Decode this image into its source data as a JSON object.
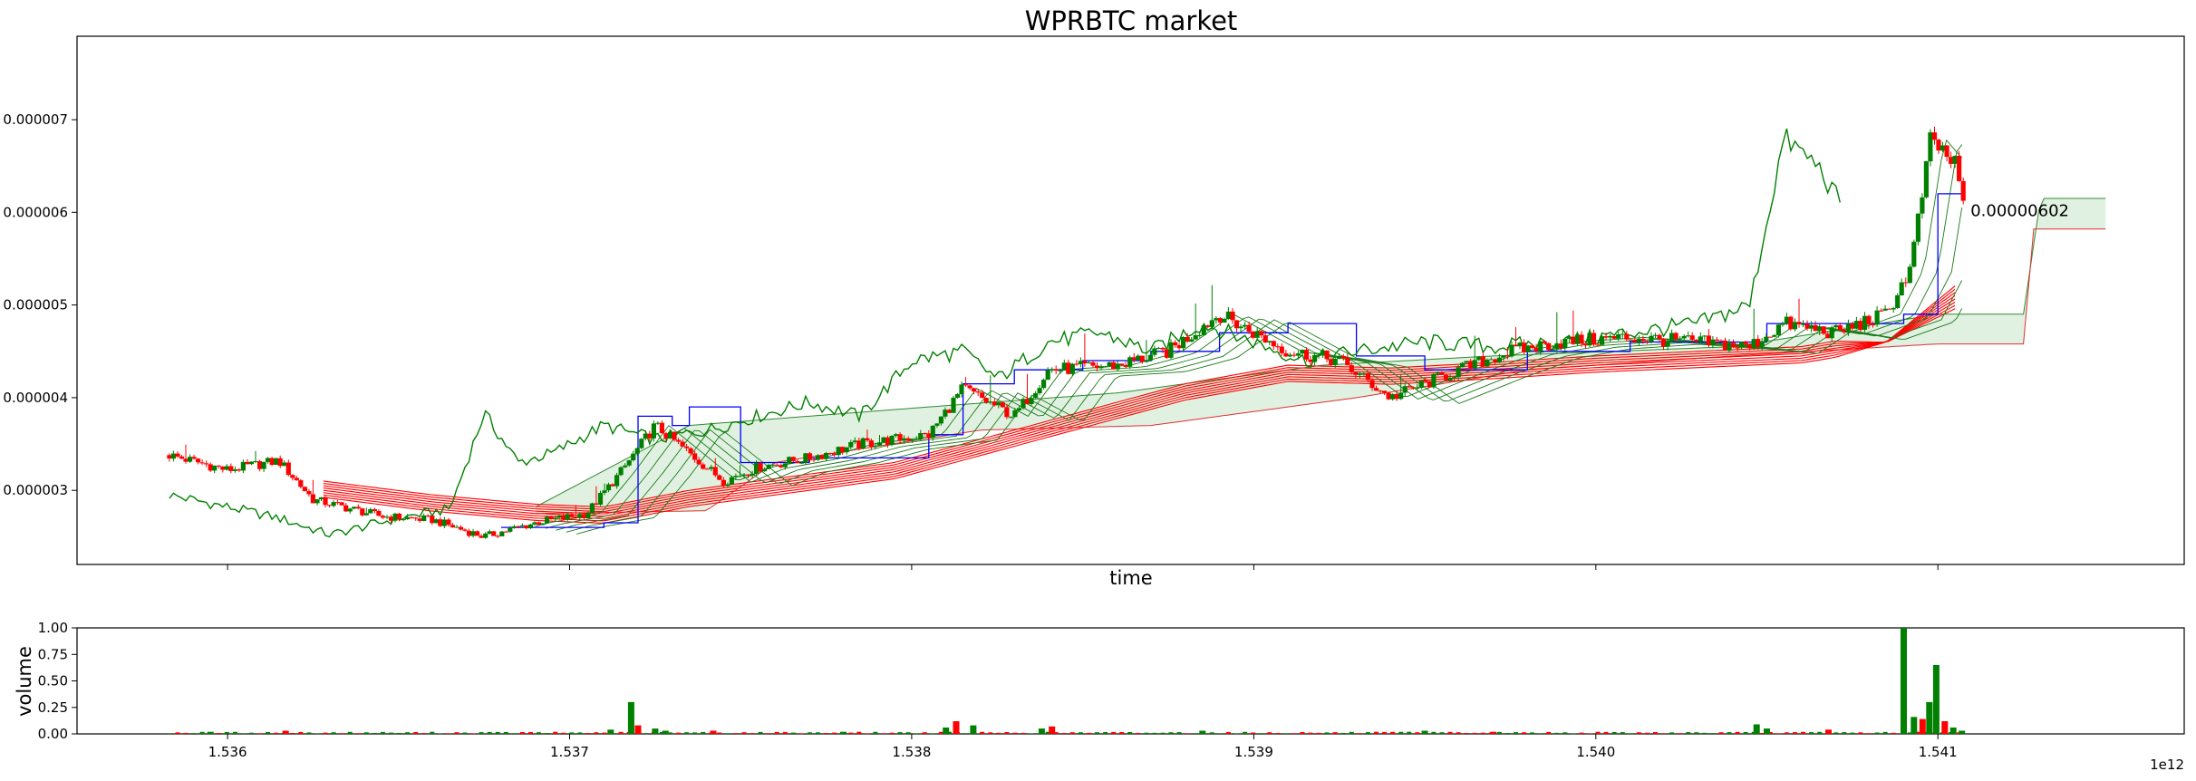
{
  "chart_data": {
    "type": "candlestick",
    "title": "WPRBTC market",
    "xlabel": "time",
    "ylabel": "",
    "x_offset_label": "1e12",
    "xlim": [
      1535560000000,
      1541720000000
    ],
    "ylim": [
      2.2e-06,
      7.9e-06
    ],
    "x_ticks": [
      {
        "value": 1536000000000,
        "label": "1.536"
      },
      {
        "value": 1537000000000,
        "label": "1.537"
      },
      {
        "value": 1538000000000,
        "label": "1.538"
      },
      {
        "value": 1539000000000,
        "label": "1.539"
      },
      {
        "value": 1540000000000,
        "label": "1.540"
      },
      {
        "value": 1541000000000,
        "label": "1.541"
      }
    ],
    "y_ticks": [
      {
        "value": 3e-06,
        "label": "0.000003"
      },
      {
        "value": 4e-06,
        "label": "0.000004"
      },
      {
        "value": 5e-06,
        "label": "0.000005"
      },
      {
        "value": 6e-06,
        "label": "0.000006"
      },
      {
        "value": 7e-06,
        "label": "0.000007"
      }
    ],
    "last_price_annotation": {
      "x": 1541000000000,
      "y": 6.02e-06,
      "label": "0.00000602"
    },
    "colors": {
      "up": "#008000",
      "down": "#ff0000",
      "blue_line": "#0000ff",
      "cloud_fill": "#c8e6c8"
    },
    "price_keypoints": [
      [
        1535830000000,
        3.38e-06
      ],
      [
        1536000000000,
        3.22e-06
      ],
      [
        1536150000000,
        3.32e-06
      ],
      [
        1536250000000,
        2.9e-06
      ],
      [
        1536450000000,
        2.72e-06
      ],
      [
        1536600000000,
        2.68e-06
      ],
      [
        1536750000000,
        2.5e-06
      ],
      [
        1536900000000,
        2.65e-06
      ],
      [
        1537050000000,
        2.75e-06
      ],
      [
        1537150000000,
        3.2e-06
      ],
      [
        1537250000000,
        3.7e-06
      ],
      [
        1537350000000,
        3.4e-06
      ],
      [
        1537450000000,
        3.1e-06
      ],
      [
        1537550000000,
        3.25e-06
      ],
      [
        1537700000000,
        3.35e-06
      ],
      [
        1537850000000,
        3.5e-06
      ],
      [
        1538050000000,
        3.6e-06
      ],
      [
        1538150000000,
        4.1e-06
      ],
      [
        1538300000000,
        3.8e-06
      ],
      [
        1538400000000,
        4.3e-06
      ],
      [
        1538600000000,
        4.35e-06
      ],
      [
        1538750000000,
        4.5e-06
      ],
      [
        1538900000000,
        4.9e-06
      ],
      [
        1539000000000,
        4.7e-06
      ],
      [
        1539100000000,
        4.5e-06
      ],
      [
        1539250000000,
        4.4e-06
      ],
      [
        1539400000000,
        4e-06
      ],
      [
        1539600000000,
        4.3e-06
      ],
      [
        1539750000000,
        4.5e-06
      ],
      [
        1539900000000,
        4.6e-06
      ],
      [
        1540100000000,
        4.65e-06
      ],
      [
        1540300000000,
        4.6e-06
      ],
      [
        1540450000000,
        4.55e-06
      ],
      [
        1540550000000,
        4.8e-06
      ],
      [
        1540700000000,
        4.7e-06
      ],
      [
        1540850000000,
        4.9e-06
      ],
      [
        1540920000000,
        5.4e-06
      ],
      [
        1540980000000,
        6.8e-06
      ],
      [
        1541050000000,
        6.5e-06
      ],
      [
        1541080000000,
        6.02e-06
      ]
    ],
    "upper_line_keypoints": [
      [
        1535830000000,
        2.95e-06
      ],
      [
        1536000000000,
        2.82e-06
      ],
      [
        1536150000000,
        2.7e-06
      ],
      [
        1536300000000,
        2.52e-06
      ],
      [
        1536500000000,
        2.7e-06
      ],
      [
        1536650000000,
        2.8e-06
      ],
      [
        1536750000000,
        3.83e-06
      ],
      [
        1536850000000,
        3.3e-06
      ],
      [
        1536950000000,
        3.4e-06
      ],
      [
        1537100000000,
        3.7e-06
      ],
      [
        1537250000000,
        3.55e-06
      ],
      [
        1537400000000,
        3.65e-06
      ],
      [
        1537550000000,
        3.8e-06
      ],
      [
        1537700000000,
        3.95e-06
      ],
      [
        1537850000000,
        3.8e-06
      ],
      [
        1538000000000,
        4.4e-06
      ],
      [
        1538150000000,
        4.5e-06
      ],
      [
        1538250000000,
        4.2e-06
      ],
      [
        1538400000000,
        4.6e-06
      ],
      [
        1538550000000,
        4.7e-06
      ],
      [
        1538700000000,
        4.5e-06
      ],
      [
        1538850000000,
        4.8e-06
      ],
      [
        1539000000000,
        4.6e-06
      ],
      [
        1539150000000,
        4.4e-06
      ],
      [
        1539300000000,
        4.5e-06
      ],
      [
        1539500000000,
        4.6e-06
      ],
      [
        1539700000000,
        4.55e-06
      ],
      [
        1539900000000,
        4.6e-06
      ],
      [
        1540100000000,
        4.7e-06
      ],
      [
        1540300000000,
        4.8e-06
      ],
      [
        1540450000000,
        5e-06
      ],
      [
        1540550000000,
        6.8e-06
      ],
      [
        1540650000000,
        6.5e-06
      ],
      [
        1540720000000,
        6.05e-06
      ]
    ],
    "red_lines_keypoints": [
      [
        1536280000000,
        3.1e-06
      ],
      [
        1536600000000,
        2.95e-06
      ],
      [
        1536900000000,
        2.85e-06
      ],
      [
        1537100000000,
        2.82e-06
      ],
      [
        1537350000000,
        3e-06
      ],
      [
        1537650000000,
        3.15e-06
      ],
      [
        1537950000000,
        3.3e-06
      ],
      [
        1538200000000,
        3.55e-06
      ],
      [
        1538500000000,
        3.85e-06
      ],
      [
        1538800000000,
        4.15e-06
      ],
      [
        1539100000000,
        4.35e-06
      ],
      [
        1539400000000,
        4.32e-06
      ],
      [
        1539700000000,
        4.38e-06
      ],
      [
        1540000000000,
        4.45e-06
      ],
      [
        1540300000000,
        4.5e-06
      ],
      [
        1540600000000,
        4.55e-06
      ],
      [
        1540850000000,
        4.7e-06
      ],
      [
        1541050000000,
        5.2e-06
      ]
    ],
    "red_ribbon_count": 8,
    "red_ribbon_gap": 2.5e-08,
    "red_ribbon_end_fan": 6e-08,
    "cloud_upper_keypoints": [
      [
        1536900000000,
        2.82e-06
      ],
      [
        1537350000000,
        3.7e-06
      ],
      [
        1538050000000,
        3.9e-06
      ],
      [
        1538600000000,
        4.05e-06
      ],
      [
        1539200000000,
        4.35e-06
      ],
      [
        1539700000000,
        4.45e-06
      ],
      [
        1540400000000,
        4.55e-06
      ],
      [
        1541000000000,
        4.9e-06
      ],
      [
        1541250000000,
        4.9e-06
      ],
      [
        1541300000000,
        6.15e-06
      ],
      [
        1541500000000,
        6.15e-06
      ]
    ],
    "cloud_lower_keypoints": [
      [
        1536900000000,
        2.75e-06
      ],
      [
        1537400000000,
        2.78e-06
      ],
      [
        1537600000000,
        3.3e-06
      ],
      [
        1538200000000,
        3.65e-06
      ],
      [
        1538700000000,
        3.7e-06
      ],
      [
        1539300000000,
        4e-06
      ],
      [
        1539800000000,
        4.3e-06
      ],
      [
        1540400000000,
        4.45e-06
      ],
      [
        1541000000000,
        4.58e-06
      ],
      [
        1541250000000,
        4.58e-06
      ],
      [
        1541280000000,
        5.82e-06
      ],
      [
        1541500000000,
        5.82e-06
      ]
    ],
    "blue_line_keypoints": [
      [
        1536800000000,
        2.6e-06
      ],
      [
        1537100000000,
        2.65e-06
      ],
      [
        1537200000000,
        3.8e-06
      ],
      [
        1537300000000,
        3.7e-06
      ],
      [
        1537350000000,
        3.9e-06
      ],
      [
        1537500000000,
        3.3e-06
      ],
      [
        1537700000000,
        3.35e-06
      ],
      [
        1538050000000,
        3.6e-06
      ],
      [
        1538150000000,
        4.15e-06
      ],
      [
        1538300000000,
        4.3e-06
      ],
      [
        1538500000000,
        4.4e-06
      ],
      [
        1538700000000,
        4.5e-06
      ],
      [
        1538900000000,
        4.7e-06
      ],
      [
        1539100000000,
        4.8e-06
      ],
      [
        1539300000000,
        4.45e-06
      ],
      [
        1539500000000,
        4.3e-06
      ],
      [
        1539800000000,
        4.5e-06
      ],
      [
        1540100000000,
        4.6e-06
      ],
      [
        1540500000000,
        4.8e-06
      ],
      [
        1540900000000,
        4.9e-06
      ],
      [
        1541000000000,
        6.2e-06
      ],
      [
        1541080000000,
        6.2e-06
      ]
    ],
    "volume": {
      "ylabel": "volume",
      "ylim": [
        0,
        1
      ],
      "y_ticks": [
        {
          "value": 0,
          "label": "0.00"
        },
        {
          "value": 0.25,
          "label": "0.25"
        },
        {
          "value": 0.5,
          "label": "0.50"
        },
        {
          "value": 0.75,
          "label": "0.75"
        },
        {
          "value": 1.0,
          "label": "1.00"
        }
      ],
      "spikes": [
        {
          "x": 1535950000000,
          "v": 0.02
        },
        {
          "x": 1536170000000,
          "v": 0.03
        },
        {
          "x": 1537120000000,
          "v": 0.04
        },
        {
          "x": 1537180000000,
          "v": 0.3
        },
        {
          "x": 1537200000000,
          "v": 0.08
        },
        {
          "x": 1537250000000,
          "v": 0.05
        },
        {
          "x": 1537280000000,
          "v": 0.03
        },
        {
          "x": 1537420000000,
          "v": 0.03
        },
        {
          "x": 1537800000000,
          "v": 0.02
        },
        {
          "x": 1538100000000,
          "v": 0.06
        },
        {
          "x": 1538130000000,
          "v": 0.12
        },
        {
          "x": 1538180000000,
          "v": 0.08
        },
        {
          "x": 1538380000000,
          "v": 0.05
        },
        {
          "x": 1538410000000,
          "v": 0.07
        },
        {
          "x": 1538850000000,
          "v": 0.03
        },
        {
          "x": 1539500000000,
          "v": 0.03
        },
        {
          "x": 1539700000000,
          "v": 0.02
        },
        {
          "x": 1540470000000,
          "v": 0.09
        },
        {
          "x": 1540500000000,
          "v": 0.05
        },
        {
          "x": 1540680000000,
          "v": 0.04
        },
        {
          "x": 1540900000000,
          "v": 1.0
        },
        {
          "x": 1540930000000,
          "v": 0.16
        },
        {
          "x": 1540955000000,
          "v": 0.14
        },
        {
          "x": 1540975000000,
          "v": 0.3
        },
        {
          "x": 1540995000000,
          "v": 0.65
        },
        {
          "x": 1541020000000,
          "v": 0.12
        },
        {
          "x": 1541045000000,
          "v": 0.06
        },
        {
          "x": 1541070000000,
          "v": 0.03
        }
      ]
    }
  }
}
